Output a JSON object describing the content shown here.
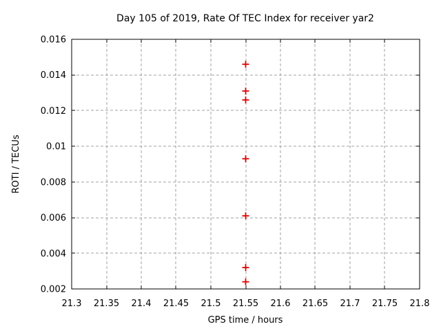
{
  "chart_data": {
    "type": "scatter",
    "title": "Day 105 of 2019, Rate Of TEC Index for receiver yar2",
    "xlabel": "GPS time / hours",
    "ylabel": "ROTI / TECUs",
    "xlim": [
      21.3,
      21.8
    ],
    "ylim": [
      0.002,
      0.016
    ],
    "x_ticks": [
      21.3,
      21.35,
      21.4,
      21.45,
      21.5,
      21.55,
      21.6,
      21.65,
      21.7,
      21.75,
      21.8
    ],
    "x_tick_labels": [
      "21.3",
      "21.35",
      "21.4",
      "21.45",
      "21.5",
      "21.55",
      "21.6",
      "21.65",
      "21.7",
      "21.75",
      "21.8"
    ],
    "y_ticks": [
      0.002,
      0.004,
      0.006,
      0.008,
      0.01,
      0.012,
      0.014,
      0.016
    ],
    "y_tick_labels": [
      "0.002",
      "0.004",
      "0.006",
      "0.008",
      "0.01",
      "0.012",
      "0.014",
      "0.016"
    ],
    "grid": true,
    "legend": "none",
    "marker": "plus",
    "marker_color": "#e00000",
    "grid_color": "#a0a0a0",
    "frame_color": "#000000",
    "series": [
      {
        "name": "ROTI",
        "x": [
          21.55,
          21.55,
          21.55,
          21.55,
          21.55,
          21.55,
          21.55
        ],
        "y": [
          0.0146,
          0.0131,
          0.0126,
          0.0093,
          0.0061,
          0.0032,
          0.0024
        ]
      }
    ]
  }
}
